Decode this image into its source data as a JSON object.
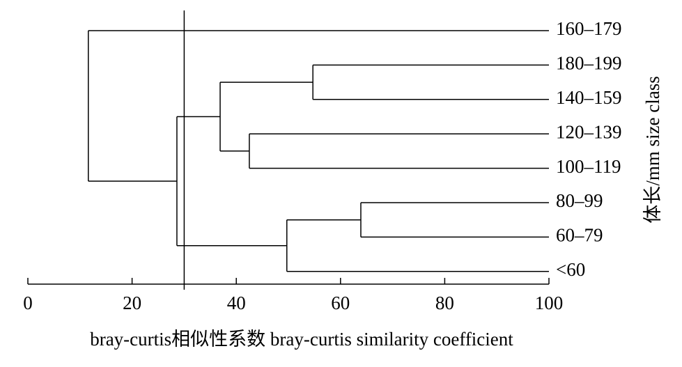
{
  "chart_data": {
    "type": "dendrogram",
    "x_label": "bray-curtis相似性系数 bray-curtis similarity coefficient",
    "y_label": "体长/mm size class",
    "xlim": [
      0,
      100
    ],
    "xticks": [
      0,
      20,
      40,
      60,
      80,
      100
    ],
    "threshold": 30,
    "tree": {
      "value": 11.6,
      "children": [
        {
          "label": "160–179"
        },
        {
          "value": 28.6,
          "children": [
            {
              "value": 36.9,
              "children": [
                {
                  "value": 54.7,
                  "children": [
                    {
                      "label": "180–199"
                    },
                    {
                      "label": "140–159"
                    }
                  ]
                },
                {
                  "value": 42.5,
                  "children": [
                    {
                      "label": "120–139"
                    },
                    {
                      "label": "100–119"
                    }
                  ]
                }
              ]
            },
            {
              "value": 49.7,
              "children": [
                {
                  "value": 63.9,
                  "children": [
                    {
                      "label": "80–99"
                    },
                    {
                      "label": "60–79"
                    }
                  ]
                },
                {
                  "label": "<60"
                }
              ]
            }
          ]
        }
      ]
    }
  }
}
